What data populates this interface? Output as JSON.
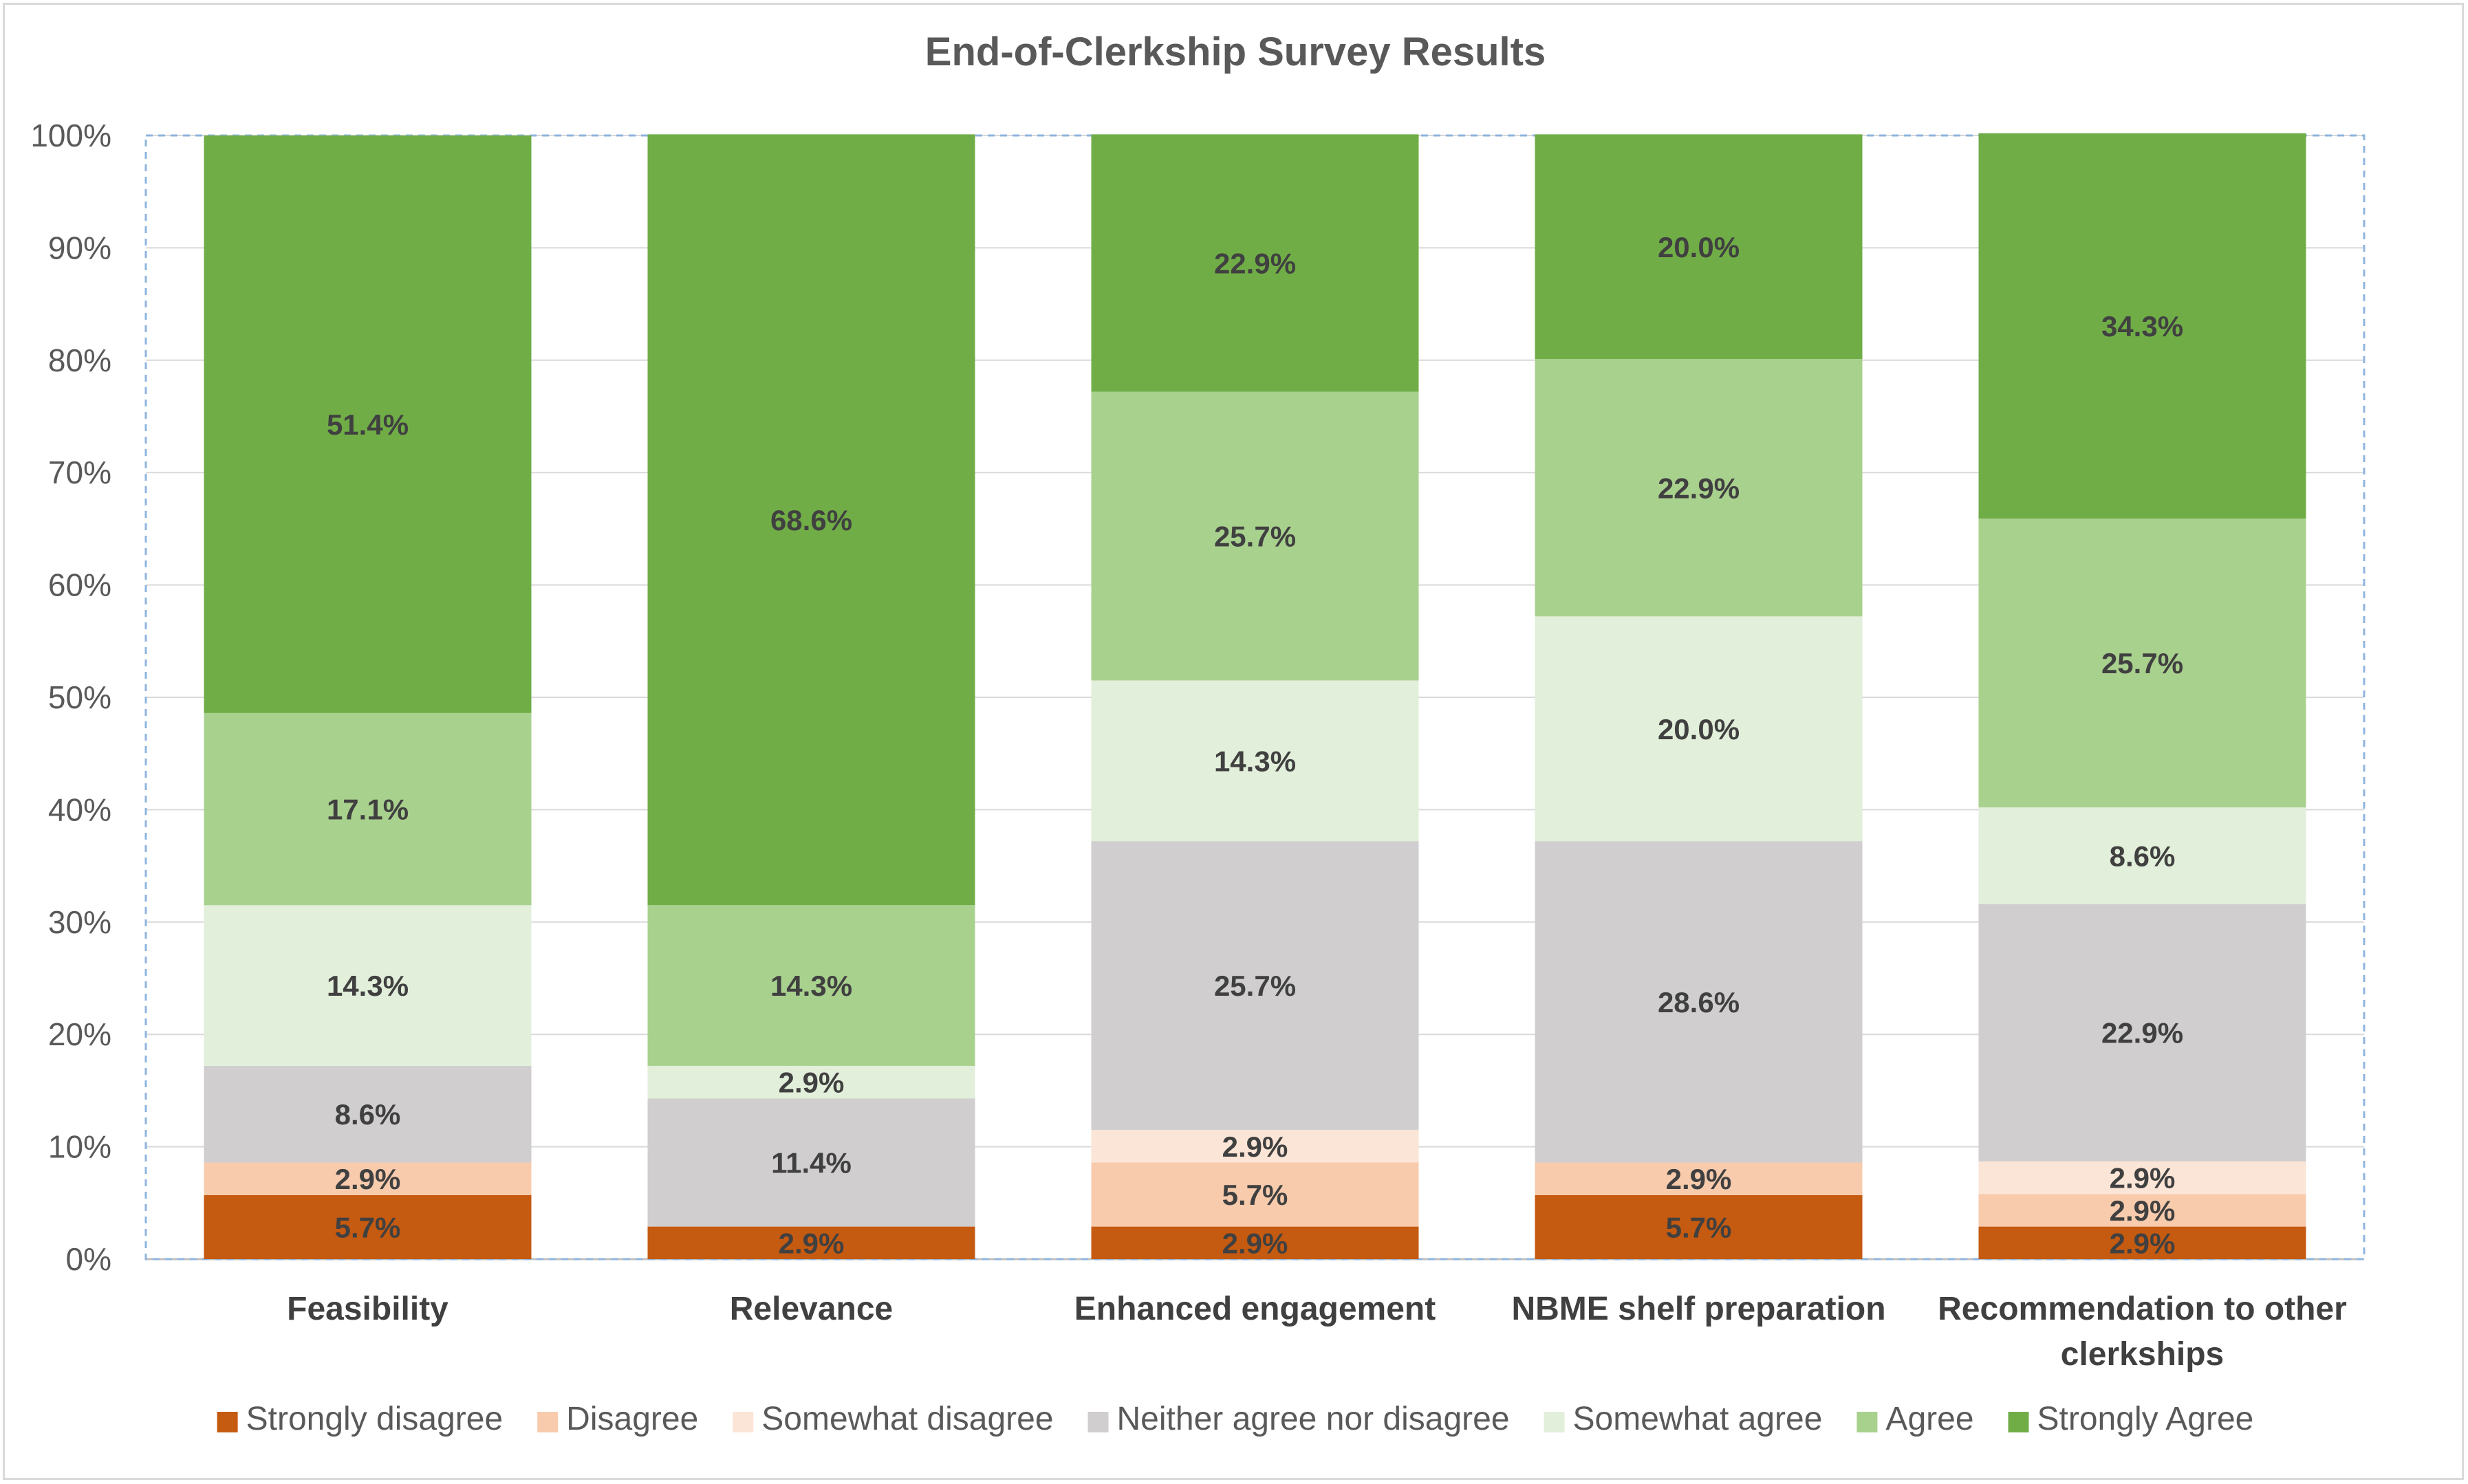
{
  "chart_data": {
    "type": "bar",
    "stacked": true,
    "percent": true,
    "title": "End-of-Clerkship Survey Results",
    "xlabel": "",
    "ylabel": "",
    "ylim": [
      0,
      100
    ],
    "y_ticks": [
      "0%",
      "10%",
      "20%",
      "30%",
      "40%",
      "50%",
      "60%",
      "70%",
      "80%",
      "90%",
      "100%"
    ],
    "grid": true,
    "legend_position": "bottom",
    "categories": [
      [
        "Feasibility"
      ],
      [
        "Relevance"
      ],
      [
        "Enhanced engagement"
      ],
      [
        "NBME shelf preparation"
      ],
      [
        "Recommendation to other",
        "clerkships"
      ]
    ],
    "series": [
      {
        "name": "Strongly disagree",
        "color": "#c55a11",
        "values": [
          5.7,
          2.9,
          2.9,
          5.7,
          2.9
        ]
      },
      {
        "name": "Disagree",
        "color": "#f8cbad",
        "values": [
          2.9,
          0,
          5.7,
          2.9,
          2.9
        ]
      },
      {
        "name": "Somewhat disagree",
        "color": "#fbe5d6",
        "values": [
          0,
          0,
          2.9,
          0,
          2.9
        ]
      },
      {
        "name": "Neither agree nor disagree",
        "color": "#d0cece",
        "values": [
          8.6,
          11.4,
          25.7,
          28.6,
          22.9
        ]
      },
      {
        "name": "Somewhat agree",
        "color": "#e2efda",
        "values": [
          14.3,
          2.9,
          14.3,
          20.0,
          8.6
        ]
      },
      {
        "name": "Agree",
        "color": "#a9d18e",
        "values": [
          17.1,
          14.3,
          25.7,
          22.9,
          25.7
        ]
      },
      {
        "name": "Strongly Agree",
        "color": "#70ad47",
        "values": [
          51.4,
          68.6,
          22.9,
          20.0,
          34.3
        ]
      }
    ]
  }
}
